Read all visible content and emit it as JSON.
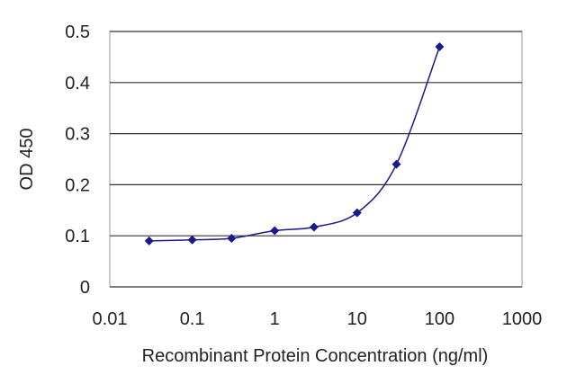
{
  "chart_data": {
    "type": "scatter",
    "xlabel": "Recombinant Protein Concentration (ng/ml)",
    "ylabel": "OD 450",
    "x_scale": "log",
    "xlim": [
      0.01,
      1000
    ],
    "ylim": [
      0,
      0.5
    ],
    "x_ticks": [
      "0.01",
      "0.1",
      "1",
      "10",
      "100",
      "1000"
    ],
    "y_ticks": [
      "0",
      "0.1",
      "0.2",
      "0.3",
      "0.4",
      "0.5"
    ],
    "grid": "horizontal",
    "series": [
      {
        "x": [
          0.03,
          0.1,
          0.3,
          1,
          3,
          10,
          30,
          100
        ],
        "y": [
          0.09,
          0.092,
          0.095,
          0.11,
          0.117,
          0.145,
          0.24,
          0.47
        ],
        "marker": "diamond",
        "line": "smooth",
        "color": "#1a1a8c"
      }
    ],
    "colors": {
      "series": "#1a1a8c",
      "grid": "#333333",
      "plot_border": "#888888"
    }
  }
}
